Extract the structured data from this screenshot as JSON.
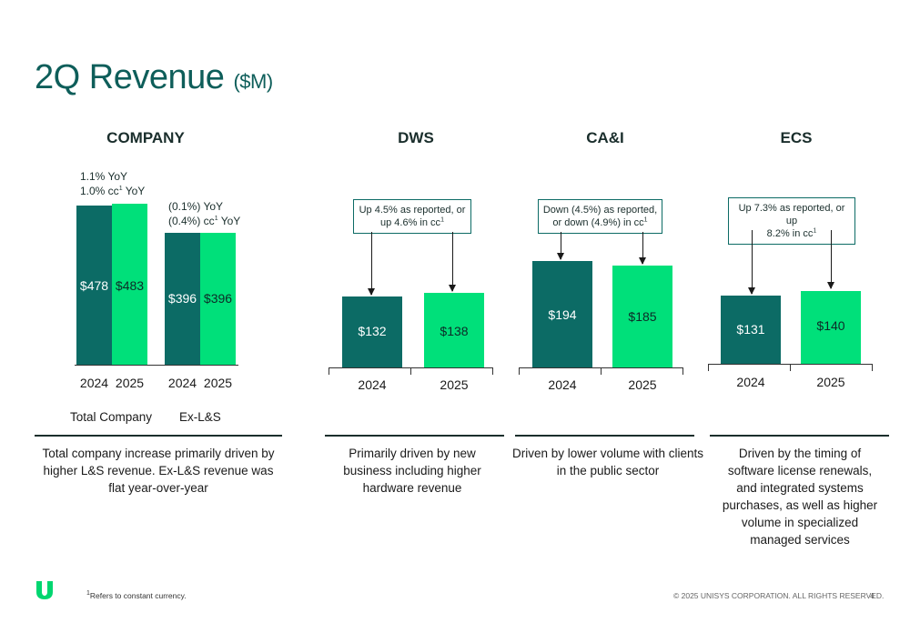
{
  "header": {
    "title": "2Q Revenue",
    "title_unit": "($M)"
  },
  "sections": {
    "company": {
      "title": "COMPANY",
      "total_yoy_line1": "1.1% YoY",
      "total_yoy_line2_pre": "1.0% cc",
      "total_yoy_line2_post": " YoY",
      "exls_yoy_line1": "(0.1%) YoY",
      "exls_yoy_line2_pre": "(0.4%) cc",
      "exls_yoy_line2_post": " YoY",
      "group_total": "Total Company",
      "group_exls": "Ex-L&S",
      "description": "Total company increase primarily driven by higher L&S revenue.  Ex-L&S revenue was flat year-over-year"
    },
    "dws": {
      "title": "DWS",
      "callout_line1": "Up 4.5% as reported, or",
      "callout_line2_pre": "up 4.6% in cc",
      "description": "Primarily driven by new business including higher hardware revenue"
    },
    "cai": {
      "title": "CA&I",
      "callout_line1": "Down (4.5%) as reported,",
      "callout_line2_pre": "or down (4.9%) in cc",
      "description": "Driven by lower volume with clients in the public sector"
    },
    "ecs": {
      "title": "ECS",
      "callout_line1": "Up 7.3% as reported, or up",
      "callout_line2_pre": "8.2% in cc",
      "description": "Driven by the timing of software license renewals, and integrated systems purchases, as well as higher volume in specialized managed services"
    }
  },
  "chart_data": [
    {
      "type": "bar",
      "title": "Total Company",
      "categories": [
        "2024",
        "2025"
      ],
      "values": [
        478,
        483
      ],
      "labels": [
        "$478",
        "$483"
      ]
    },
    {
      "type": "bar",
      "title": "Ex-L&S",
      "categories": [
        "2024",
        "2025"
      ],
      "values": [
        396,
        396
      ],
      "labels": [
        "$396",
        "$396"
      ]
    },
    {
      "type": "bar",
      "title": "DWS",
      "categories": [
        "2024",
        "2025"
      ],
      "values": [
        132,
        138
      ],
      "labels": [
        "$132",
        "$138"
      ]
    },
    {
      "type": "bar",
      "title": "CA&I",
      "categories": [
        "2024",
        "2025"
      ],
      "values": [
        194,
        185
      ],
      "labels": [
        "$194",
        "$185"
      ]
    },
    {
      "type": "bar",
      "title": "ECS",
      "categories": [
        "2024",
        "2025"
      ],
      "values": [
        131,
        140
      ],
      "labels": [
        "$131",
        "$140"
      ]
    }
  ],
  "footer": {
    "footnote_sup": "1",
    "footnote": "Refers to constant currency.",
    "copyright": "© 2025 UNISYS CORPORATION. ALL RIGHTS RESERVED.",
    "page_number": "4",
    "sup": "1"
  },
  "colors": {
    "dark_bar": "#0c6b65",
    "light_bar": "#00e07a",
    "title": "#0e5e5a"
  },
  "icons": {
    "logo": "unisys-logo-icon"
  }
}
